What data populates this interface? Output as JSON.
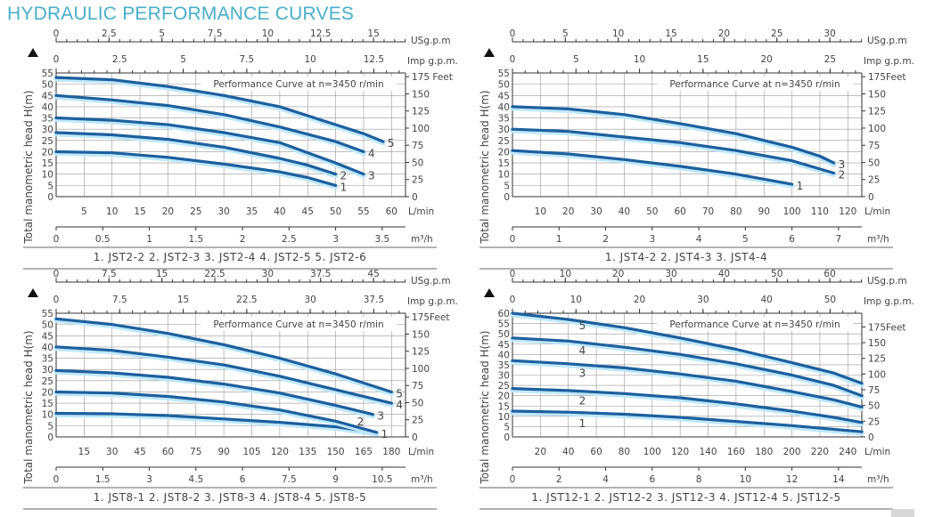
{
  "page": {
    "title": "HYDRAULIC PERFORMANCE CURVES"
  },
  "colors": {
    "title": "#4aaec9",
    "curve": "#1e5f9e",
    "curve_glow": "#bfe8fb",
    "grid": "#9a9a9a"
  },
  "chart_data": [
    {
      "type": "line",
      "id": "jst2",
      "annotation": "Performance Curve at n=3450 r/min",
      "ylabel": "Total manometric head H(m)",
      "ylim": [
        0,
        55
      ],
      "yticks": [
        0,
        5,
        10,
        15,
        20,
        25,
        30,
        35,
        40,
        45,
        50,
        55
      ],
      "feet_ticks": [
        "0",
        "25",
        "50",
        "75",
        "100",
        "125",
        "150",
        "175 Feet"
      ],
      "xlim_lmin": [
        0,
        62.5
      ],
      "lmin_ticks": [
        5,
        10,
        15,
        20,
        25,
        30,
        35,
        40,
        45,
        50,
        55,
        60
      ],
      "lmin_unit": "L/min",
      "m3h_ticks": [
        "0",
        "0.5",
        "1",
        "1.5",
        "2",
        "2.5",
        "3",
        "3.5"
      ],
      "m3h_unit": "m³/h",
      "usgpm_ticks": [
        "0",
        "2.5",
        "5",
        "7.5",
        "10",
        "12.5",
        "15"
      ],
      "usgpm_max_tick": 15,
      "usgpm_unit": "USg.p.m",
      "impgpm_ticks": [
        "0",
        "2.5",
        "5",
        "7.5",
        "10",
        "12.5"
      ],
      "impgpm_unit": "Imp g.p.m.",
      "legend": "1. JST2-2   2. JST2-3   3. JST2-4   4. JST2-5   5. JST2-6",
      "label_position": "end",
      "series": [
        {
          "name": "1",
          "model": "JST2-2",
          "x": [
            0,
            10,
            20,
            30,
            40,
            45,
            50
          ],
          "y": [
            20,
            19.5,
            17.5,
            14.5,
            11,
            8.5,
            5
          ]
        },
        {
          "name": "2",
          "model": "JST2-3",
          "x": [
            0,
            10,
            20,
            30,
            40,
            45,
            50
          ],
          "y": [
            28.5,
            27.5,
            25.5,
            22,
            17,
            14,
            10
          ]
        },
        {
          "name": "3",
          "model": "JST2-4",
          "x": [
            0,
            10,
            20,
            30,
            40,
            50,
            55
          ],
          "y": [
            35,
            34,
            32,
            28.5,
            24,
            15,
            10
          ]
        },
        {
          "name": "4",
          "model": "JST2-5",
          "x": [
            0,
            10,
            20,
            30,
            40,
            50,
            55
          ],
          "y": [
            45,
            43,
            40.5,
            36.5,
            31,
            24.5,
            20
          ]
        },
        {
          "name": "5",
          "model": "JST2-6",
          "x": [
            0,
            10,
            20,
            30,
            40,
            45,
            50,
            55,
            58.5
          ],
          "y": [
            53,
            52,
            49,
            45,
            40,
            36,
            32,
            28,
            24.5
          ]
        }
      ]
    },
    {
      "type": "line",
      "id": "jst4",
      "annotation": "Performance Curve at n=3450 r/min",
      "ylabel": "Total manometric head H(m)",
      "ylim": [
        0,
        55
      ],
      "yticks": [
        0,
        5,
        10,
        15,
        20,
        25,
        30,
        35,
        40,
        45,
        50,
        55
      ],
      "feet_ticks": [
        "0",
        "25",
        "50",
        "75",
        "100",
        "125",
        "150",
        "175Feet"
      ],
      "xlim_lmin": [
        0,
        125
      ],
      "lmin_ticks": [
        10,
        20,
        30,
        40,
        50,
        60,
        70,
        80,
        90,
        100,
        110,
        120
      ],
      "lmin_unit": "L/min",
      "m3h_ticks": [
        "0",
        "1",
        "2",
        "3",
        "4",
        "5",
        "6",
        "7"
      ],
      "m3h_unit": "m³/h",
      "usgpm_ticks": [
        "0",
        "5",
        "10",
        "15",
        "20",
        "25",
        "30"
      ],
      "usgpm_max_tick": 30,
      "usgpm_unit": "USg.p.m",
      "impgpm_ticks": [
        "0",
        "5",
        "10",
        "15",
        "20",
        "25"
      ],
      "impgpm_unit": "Imp g.p.m.",
      "legend": "1. JST4-2   2. JST4-3   3. JST4-4",
      "label_position": "end",
      "series": [
        {
          "name": "1",
          "model": "JST4-2",
          "x": [
            0,
            20,
            40,
            60,
            80,
            100
          ],
          "y": [
            20.5,
            19,
            16.5,
            13.5,
            10,
            5.5
          ]
        },
        {
          "name": "2",
          "model": "JST4-3",
          "x": [
            0,
            20,
            40,
            60,
            80,
            100,
            115
          ],
          "y": [
            30,
            29,
            26.5,
            24,
            20.5,
            16,
            10.5
          ]
        },
        {
          "name": "3",
          "model": "JST4-4",
          "x": [
            0,
            20,
            40,
            60,
            80,
            100,
            110,
            115
          ],
          "y": [
            40,
            39,
            36.5,
            32.5,
            28,
            22,
            18,
            15
          ]
        }
      ]
    },
    {
      "type": "line",
      "id": "jst8",
      "annotation": "Performance Curve at n=3450 r/min",
      "ylabel": "Total manometric head H(m)",
      "ylim": [
        0,
        55
      ],
      "yticks": [
        0,
        5,
        10,
        15,
        20,
        25,
        30,
        35,
        40,
        45,
        50,
        55
      ],
      "feet_ticks": [
        "0",
        "25",
        "50",
        "75",
        "100",
        "125",
        "150",
        "175Feet"
      ],
      "xlim_lmin": [
        0,
        187.5
      ],
      "lmin_ticks": [
        15,
        30,
        45,
        60,
        75,
        90,
        105,
        120,
        135,
        150,
        165,
        180
      ],
      "lmin_unit": "L/min",
      "m3h_ticks": [
        "0",
        "1.5",
        "3",
        "4.5",
        "6",
        "7.5",
        "9",
        "10.5"
      ],
      "m3h_unit": "m³/h",
      "usgpm_ticks": [
        "0",
        "7.5",
        "15",
        "22.5",
        "30",
        "37.5",
        "45"
      ],
      "usgpm_max_tick": 45,
      "usgpm_unit": "USg.p.m",
      "impgpm_ticks": [
        "0",
        "7.5",
        "15",
        "22.5",
        "30",
        "37.5"
      ],
      "impgpm_unit": "Imp g.p.m.",
      "legend": "1. JST8-1   2. JST8-2   3. JST8-3   4. JST8-4   5. JST8-5",
      "label_position": "end",
      "series": [
        {
          "name": "1",
          "model": "JST8-1",
          "x": [
            0,
            30,
            60,
            90,
            120,
            150,
            172
          ],
          "y": [
            10.5,
            10.3,
            9.5,
            8,
            6.5,
            4.5,
            2
          ]
        },
        {
          "name": "2",
          "model": "JST8-2",
          "x": [
            0,
            30,
            60,
            90,
            120,
            150,
            172
          ],
          "y": [
            20,
            19.5,
            18,
            15.5,
            12,
            7,
            2
          ]
        },
        {
          "name": "3",
          "model": "JST8-3",
          "x": [
            0,
            30,
            60,
            90,
            120,
            150,
            170
          ],
          "y": [
            29.5,
            28.5,
            26.5,
            23.5,
            19.5,
            14,
            10
          ]
        },
        {
          "name": "4",
          "model": "JST8-4",
          "x": [
            0,
            30,
            60,
            90,
            120,
            150,
            180
          ],
          "y": [
            40,
            38.5,
            35.5,
            32,
            27,
            21,
            15
          ]
        },
        {
          "name": "5",
          "model": "JST8-5",
          "x": [
            0,
            30,
            60,
            90,
            120,
            150,
            180
          ],
          "y": [
            52.5,
            50,
            46,
            41,
            35,
            28,
            20
          ]
        }
      ]
    },
    {
      "type": "line",
      "id": "jst12",
      "annotation": "Performance Curve at n=3450 r/min",
      "ylabel": "Total manometric head H(m)",
      "ylim": [
        0,
        60
      ],
      "yticks": [
        0,
        5,
        10,
        15,
        20,
        25,
        30,
        35,
        40,
        45,
        50,
        55,
        60
      ],
      "feet_ticks": [
        "0",
        "25",
        "50",
        "75",
        "100",
        "125",
        "150",
        "175Feet"
      ],
      "xlim_lmin": [
        0,
        250
      ],
      "lmin_ticks": [
        20,
        40,
        60,
        80,
        100,
        120,
        140,
        160,
        180,
        200,
        220,
        240
      ],
      "lmin_unit": "L/min",
      "m3h_ticks": [
        "0",
        "2",
        "4",
        "6",
        "8",
        "10",
        "12",
        "14"
      ],
      "m3h_unit": "m³/h",
      "usgpm_ticks": [
        "0",
        "10",
        "20",
        "30",
        "40",
        "50",
        "60"
      ],
      "usgpm_max_tick": 60,
      "usgpm_unit": "USg.p.m",
      "impgpm_ticks": [
        "0",
        "10",
        "20",
        "30",
        "40",
        "50"
      ],
      "impgpm_unit": "Imp g.p.m.",
      "legend": "1. JST12-1   2. JST12-2   3. JST12-3   4. JST12-4   5. JST12-5",
      "label_position": "inside-left",
      "series": [
        {
          "name": "1",
          "model": "JST12-1",
          "x": [
            0,
            40,
            80,
            120,
            160,
            200,
            250
          ],
          "y": [
            12.5,
            12,
            11,
            9.5,
            7.5,
            5.5,
            2.5
          ]
        },
        {
          "name": "2",
          "model": "JST12-2",
          "x": [
            0,
            40,
            80,
            120,
            160,
            200,
            230,
            250
          ],
          "y": [
            23.5,
            22.5,
            21,
            19,
            16,
            12.5,
            9.5,
            7
          ]
        },
        {
          "name": "3",
          "model": "JST12-3",
          "x": [
            0,
            40,
            80,
            120,
            160,
            200,
            230,
            250
          ],
          "y": [
            37,
            35.5,
            33.5,
            30.5,
            27,
            22,
            18,
            14.5
          ]
        },
        {
          "name": "4",
          "model": "JST12-4",
          "x": [
            0,
            40,
            80,
            120,
            160,
            200,
            230,
            250
          ],
          "y": [
            48,
            46.5,
            43.5,
            40,
            35.5,
            30,
            25,
            20
          ]
        },
        {
          "name": "5",
          "model": "JST12-5",
          "x": [
            0,
            40,
            80,
            120,
            160,
            200,
            230,
            250
          ],
          "y": [
            60,
            57,
            53,
            48,
            42.5,
            36,
            31,
            26
          ]
        }
      ]
    }
  ]
}
